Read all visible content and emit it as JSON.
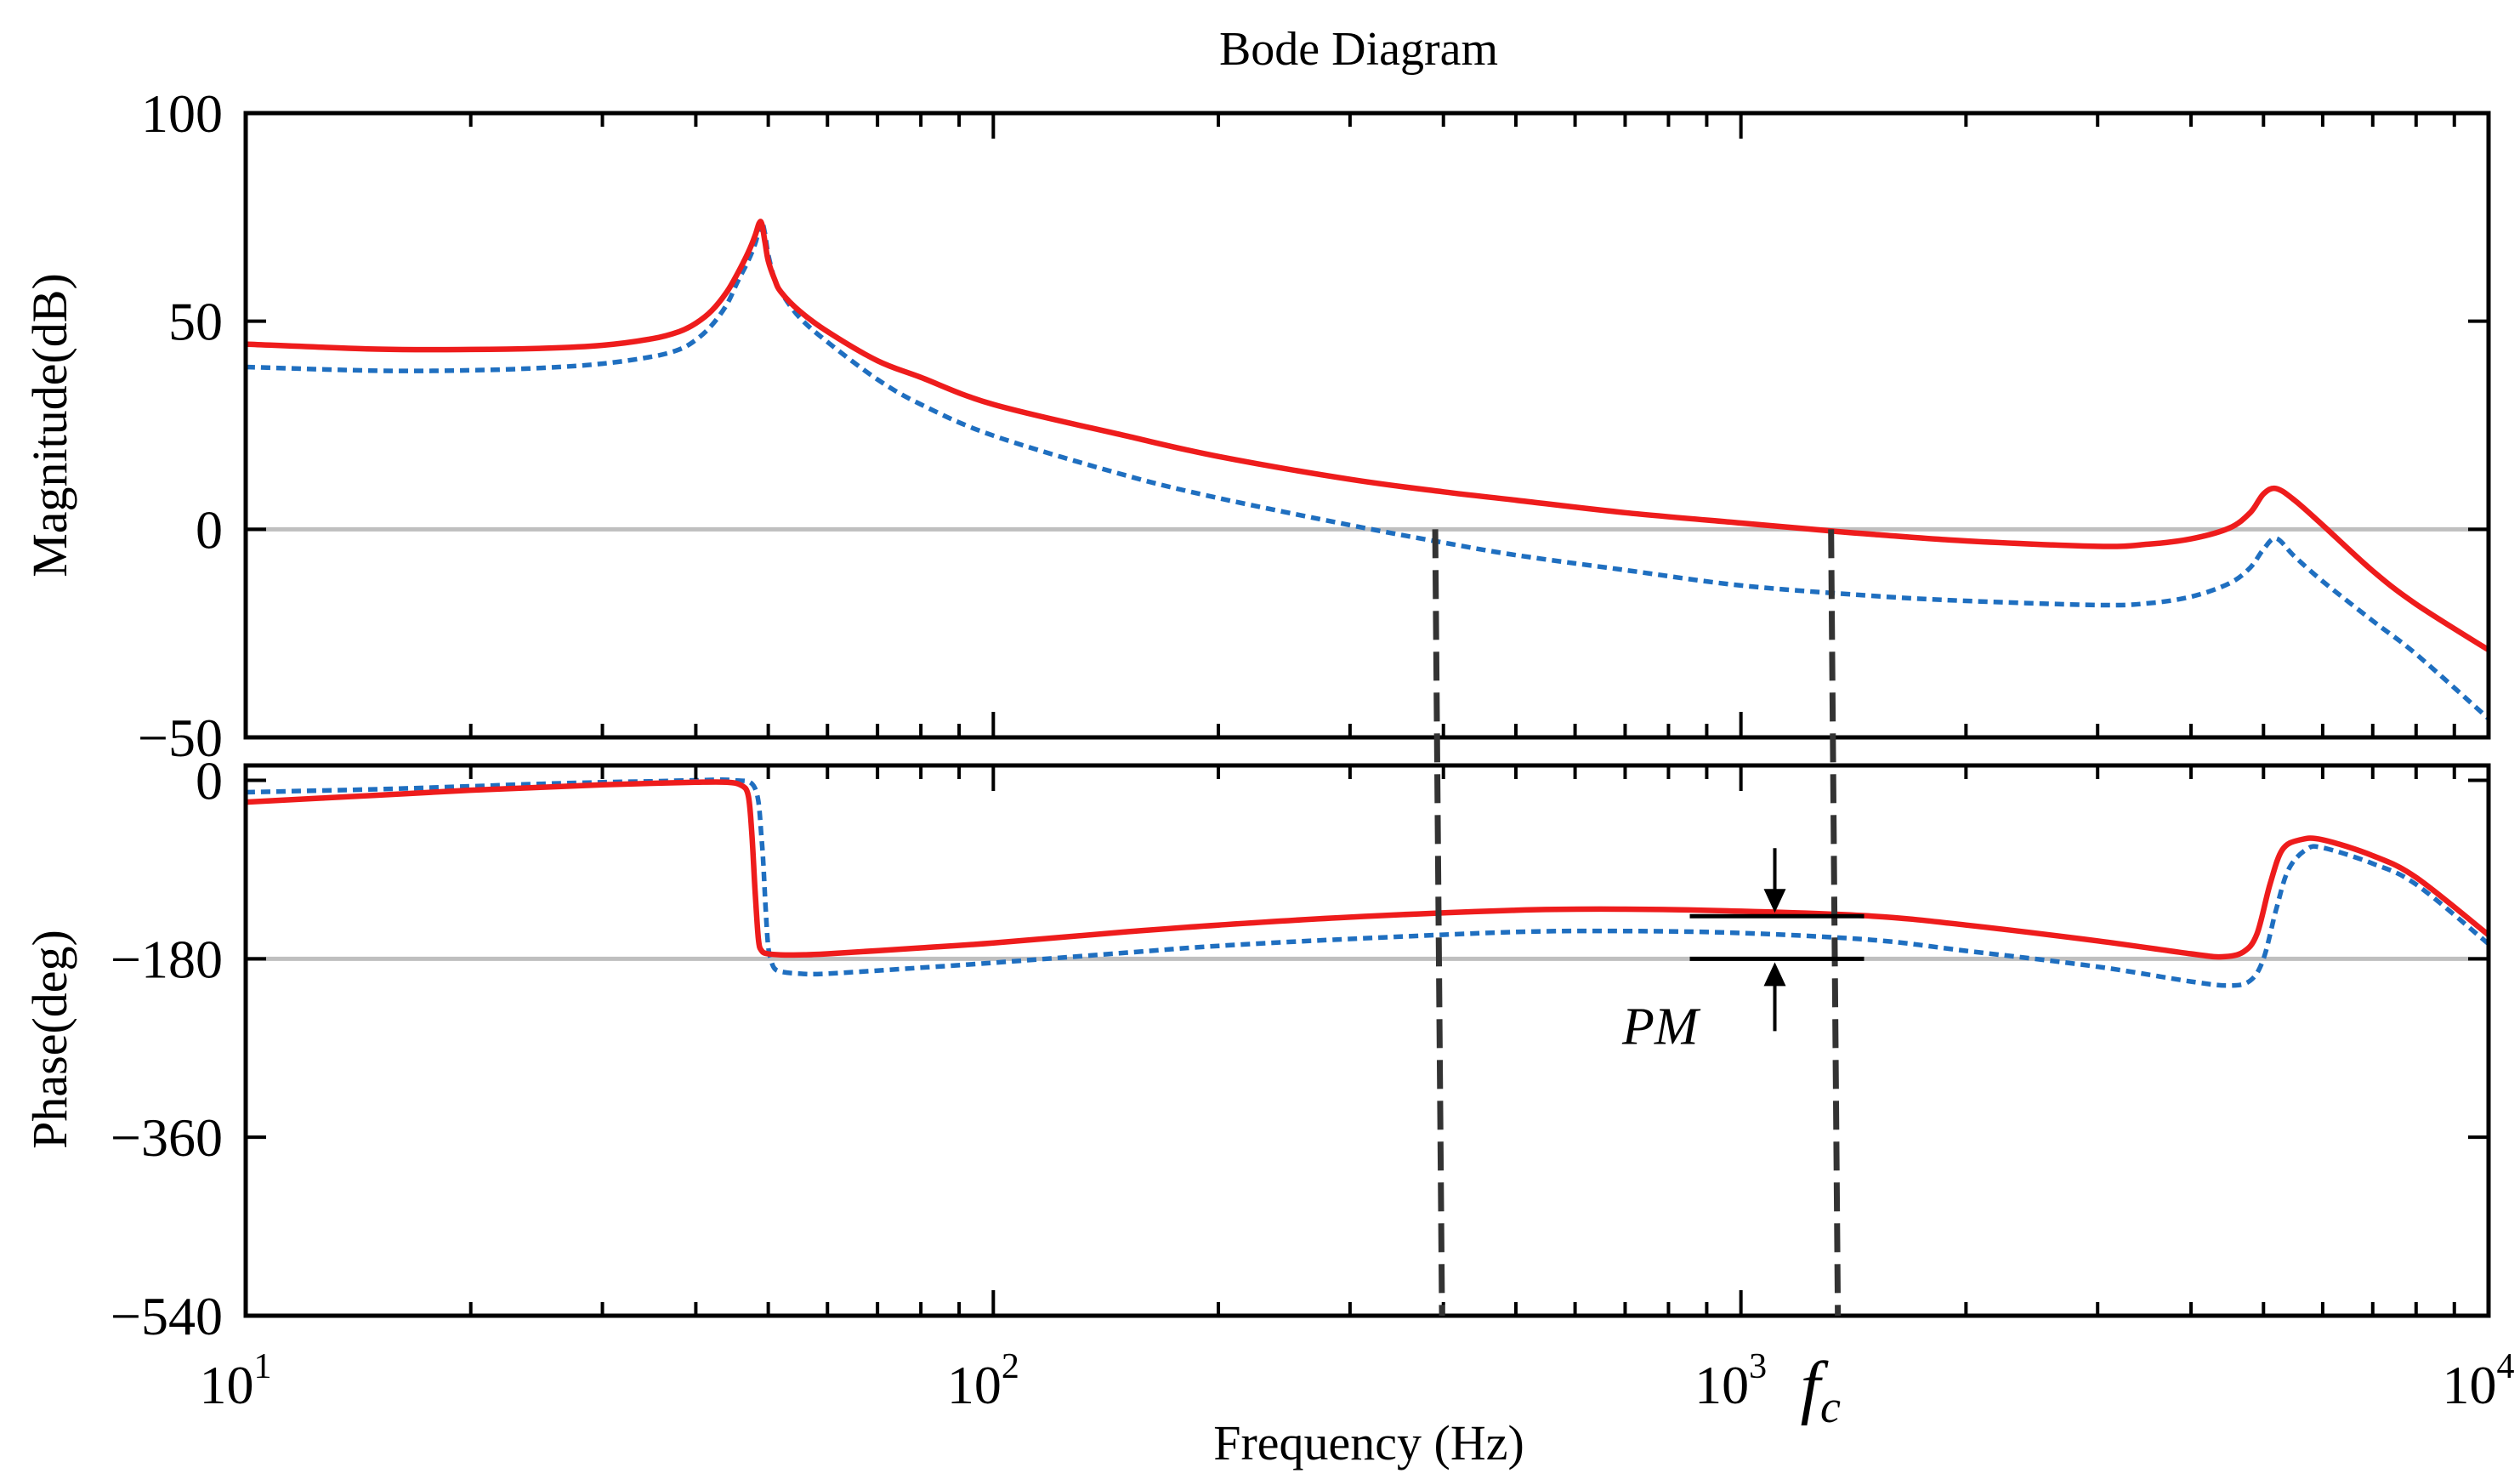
{
  "chart_data": {
    "type": "line",
    "title": "Bode Diagram",
    "xlabel": "Frequency  (Hz)",
    "xscale": "log",
    "xlim": [
      10,
      10000
    ],
    "x_ticks": [
      {
        "value": 10,
        "base": "10",
        "exp": "1"
      },
      {
        "value": 100,
        "base": "10",
        "exp": "2"
      },
      {
        "value": 1000,
        "base": "10",
        "exp": "3"
      },
      {
        "value": 10000,
        "base": "10",
        "exp": "4"
      }
    ],
    "colors": {
      "red": "#ee1c1c",
      "blue": "#1f6fc0",
      "grid": "#bfbfbf",
      "axis": "#000000"
    },
    "magnitude": {
      "ylabel": "Magnitude(dB)",
      "ylim": [
        -50,
        100
      ],
      "yticks": [
        {
          "value": 100,
          "label": "100"
        },
        {
          "value": 50,
          "label": "50"
        },
        {
          "value": 0,
          "label": "0"
        },
        {
          "value": -50,
          "label": "−50"
        }
      ],
      "reference_line": 0,
      "series": [
        {
          "name": "red",
          "style": "solid",
          "x": [
            10,
            15,
            20,
            25,
            30,
            35,
            38,
            40,
            42,
            44,
            45.5,
            47,
            48,
            48.6,
            49,
            49.5,
            50,
            51,
            52,
            55,
            60,
            70,
            80,
            100,
            150,
            200,
            300,
            400,
            500,
            700,
            1000,
            1300,
            1500,
            2000,
            3000,
            3500,
            4000,
            4500,
            4800,
            5000,
            5200,
            5500,
            6000,
            7000,
            8000,
            10000
          ],
          "y": [
            44.5,
            43.3,
            43.2,
            43.5,
            44.2,
            45.8,
            47.5,
            49.5,
            52.5,
            57,
            61.5,
            66.5,
            70.5,
            73.5,
            73.5,
            69,
            64.5,
            60,
            57,
            52.5,
            47.5,
            40.5,
            36.5,
            30,
            22.5,
            17.5,
            12,
            9,
            7,
            4,
            1.5,
            -0.3,
            -1.2,
            -2.8,
            -4.1,
            -3.6,
            -2.3,
            0.3,
            4,
            8.5,
            9.8,
            7,
            1,
            -10,
            -18,
            -29
          ]
        },
        {
          "name": "blue",
          "style": "dashed",
          "x": [
            10,
            15,
            20,
            25,
            30,
            35,
            38,
            40,
            42,
            44,
            45.5,
            47,
            48,
            48.6,
            49,
            49.5,
            50,
            51,
            52,
            55,
            60,
            70,
            80,
            100,
            150,
            200,
            300,
            400,
            500,
            700,
            1000,
            1500,
            2000,
            3000,
            3500,
            4000,
            4500,
            4800,
            5000,
            5200,
            5500,
            6000,
            7000,
            8000,
            10000
          ],
          "y": [
            39,
            38.1,
            38.2,
            38.8,
            39.8,
            41.5,
            43.2,
            45.5,
            49,
            54,
            59.5,
            64.5,
            68.5,
            72,
            74,
            71,
            66,
            60,
            57,
            51,
            45,
            36,
            30,
            22.5,
            13,
            7.5,
            1,
            -3.2,
            -6.2,
            -9.8,
            -13.5,
            -16,
            -17.2,
            -18.2,
            -17.8,
            -16.2,
            -13,
            -9.2,
            -4.8,
            -2.2,
            -6.5,
            -12.5,
            -22,
            -30,
            -45.5
          ]
        }
      ]
    },
    "phase": {
      "ylabel": "Phase(deg)",
      "ylim": [
        -540,
        15
      ],
      "yticks": [
        {
          "value": 0,
          "label": "0"
        },
        {
          "value": -180,
          "label": "−180"
        },
        {
          "value": -360,
          "label": "−360"
        },
        {
          "value": -540,
          "label": "−540"
        }
      ],
      "reference_line": -180,
      "series": [
        {
          "name": "red",
          "style": "solid",
          "x": [
            10,
            15,
            20,
            25,
            30,
            35,
            40,
            44,
            46,
            47,
            47.5,
            48,
            48.5,
            49,
            50,
            52,
            55,
            60,
            80,
            100,
            150,
            200,
            300,
            500,
            700,
            1000,
            1500,
            2000,
            3000,
            4000,
            4400,
            4700,
            4900,
            5100,
            5300,
            5600,
            6000,
            7000,
            8000,
            10000
          ],
          "y": [
            -22,
            -15,
            -10,
            -7,
            -4.5,
            -3,
            -2,
            -2,
            -5,
            -15,
            -50,
            -110,
            -160,
            -172,
            -175,
            -176,
            -176,
            -175,
            -169,
            -164,
            -153,
            -146,
            -138,
            -131,
            -130,
            -132,
            -137,
            -146,
            -162,
            -175,
            -178,
            -173,
            -155,
            -105,
            -70,
            -60,
            -60,
            -76,
            -98,
            -156
          ]
        },
        {
          "name": "blue",
          "style": "dashed",
          "x": [
            10,
            15,
            20,
            25,
            30,
            35,
            40,
            45,
            48,
            49,
            49.6,
            50,
            50.5,
            51,
            52,
            55,
            60,
            80,
            100,
            150,
            200,
            300,
            500,
            700,
            1000,
            1500,
            2000,
            3000,
            4000,
            4500,
            4800,
            5000,
            5200,
            5400,
            5700,
            6000,
            7000,
            8000,
            10000
          ],
          "y": [
            -12,
            -9,
            -6,
            -3.5,
            -2,
            -1,
            0,
            0,
            -8,
            -60,
            -130,
            -168,
            -183,
            -190,
            -193,
            -195,
            -195,
            -189,
            -184,
            -174,
            -167,
            -160,
            -153,
            -152,
            -154,
            -161,
            -172,
            -188,
            -203,
            -207,
            -202,
            -180,
            -130,
            -90,
            -70,
            -68,
            -84,
            -105,
            -165
          ]
        }
      ]
    },
    "annotations": {
      "pm_label": "PM",
      "fc_label": "f",
      "fc_sub": "c",
      "fc_blue_hz": 390,
      "fc_red_hz": 1320,
      "pm_marker_hz": 1110,
      "pm_upper_deg": -137,
      "pm_lower_deg": -180
    }
  }
}
